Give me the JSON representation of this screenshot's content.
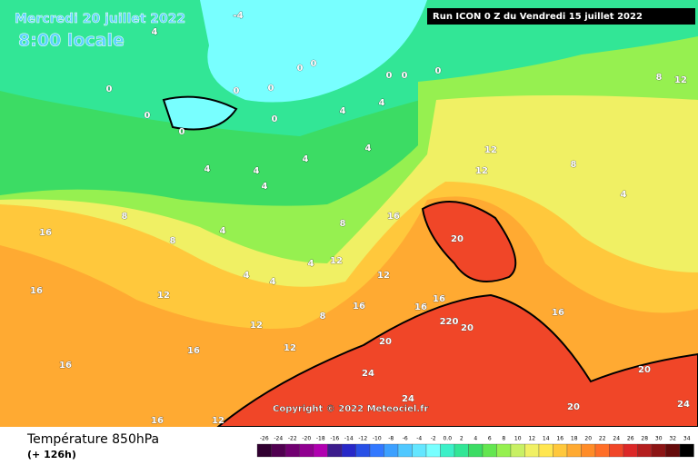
{
  "header": {
    "date": "Mercredi 20 juillet 2022",
    "time": "8:00 locale",
    "run": "Run ICON 0 Z du Vendredi 15 juillet 2022"
  },
  "copyright": "Copyright © 2022 Meteociel.fr",
  "footer": {
    "title": "Température 850hPa",
    "lead": "(+ 126h)"
  },
  "scale": {
    "ticks": [
      -26,
      -24,
      -22,
      -20,
      -18,
      -16,
      -14,
      -12,
      -10,
      -8,
      -6,
      -4,
      -2,
      {
        "value": 0,
        "label": "0.0"
      },
      2,
      4,
      6,
      8,
      10,
      12,
      14,
      16,
      18,
      20,
      22,
      24,
      26,
      28,
      30,
      32,
      34
    ],
    "colors": [
      "#300030",
      "#500050",
      "#700070",
      "#900090",
      "#b000b0",
      "#3c1c8c",
      "#2828c8",
      "#2850e6",
      "#3278ff",
      "#3ca0ff",
      "#50c8ff",
      "#64e6ff",
      "#78ffff",
      "#3cf0c8",
      "#32e696",
      "#3cdc64",
      "#64e650",
      "#96f050",
      "#c8f064",
      "#f0f064",
      "#ffe650",
      "#ffc83c",
      "#ffaa32",
      "#ff8c28",
      "#ff6e28",
      "#f04628",
      "#dc2828",
      "#b41e1e",
      "#8c1414",
      "#640a0a",
      "#000000"
    ]
  },
  "map_labels": [
    "-4",
    "0",
    "0",
    "0",
    "0",
    "0",
    "0",
    "0",
    "0",
    "0",
    "0",
    "0",
    "4",
    "4",
    "4",
    "4",
    "4",
    "4",
    "4",
    "4",
    "4",
    "4",
    "4",
    "4",
    "4",
    "8",
    "8",
    "8",
    "8",
    "8",
    "8",
    "12",
    "12",
    "12",
    "12",
    "12",
    "12",
    "12",
    "12",
    "12",
    "16",
    "16",
    "16",
    "16",
    "16",
    "16",
    "16",
    "16",
    "16",
    "20",
    "20",
    "20",
    "20",
    "20",
    "220",
    "24",
    "24",
    "24",
    "16"
  ]
}
